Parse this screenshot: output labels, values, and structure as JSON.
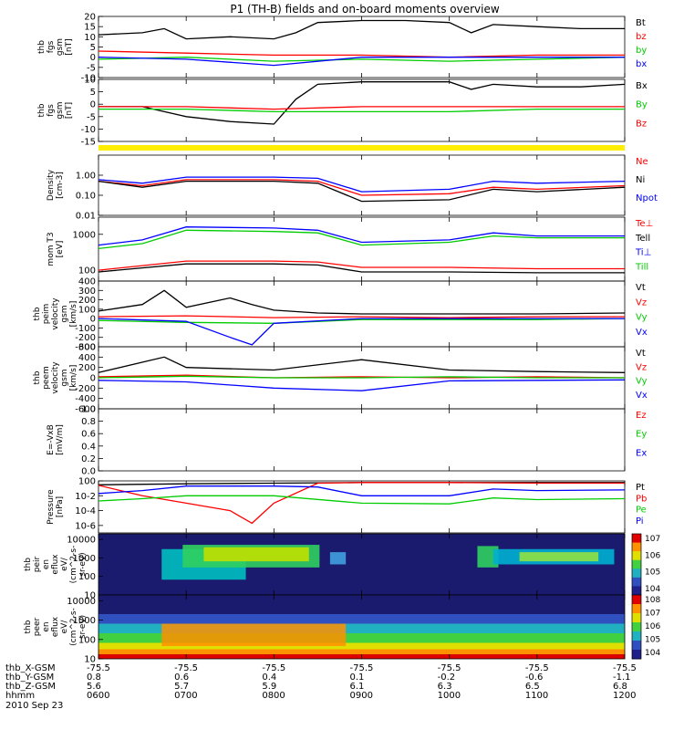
{
  "title": "P1 (TH-B) fields and on-board moments overview",
  "date_label": "2010 Sep 23",
  "time_axis": {
    "row_labels": [
      "thb_X-GSM",
      "thb_Y-GSM",
      "thb_Z-GSM",
      "hhmm"
    ],
    "columns": [
      [
        "-75.5",
        "0.8",
        "5.6",
        "0600"
      ],
      [
        "-75.5",
        "0.6",
        "5.7",
        "0700"
      ],
      [
        "-75.5",
        "0.4",
        "5.9",
        "0800"
      ],
      [
        "-75.5",
        "0.1",
        "6.1",
        "0900"
      ],
      [
        "-75.5",
        "-0.2",
        "6.3",
        "1000"
      ],
      [
        "-75.5",
        "-0.6",
        "6.5",
        "1100"
      ],
      [
        "-75.5",
        "-1.1",
        "6.8",
        "1200"
      ]
    ]
  },
  "colorbar_labels": {
    "ion": [
      "10^7",
      "10^6",
      "10^5",
      "10^4"
    ],
    "electron": [
      "10^8",
      "10^7",
      "10^6",
      "10^5",
      "10^4"
    ]
  },
  "chart_data": [
    {
      "id": "fgs-gsm",
      "type": "line",
      "ylabel": [
        "thb",
        "fgs",
        "gsm",
        "[nT]"
      ],
      "ylim": [
        -10,
        20
      ],
      "yticks": [
        "20",
        "15",
        "10",
        "5",
        "0",
        "-5",
        "-10"
      ],
      "x_range": [
        "0600",
        "1200"
      ],
      "series": [
        {
          "name": "Bt",
          "color": "#000000",
          "x": [
            "0600",
            "0630",
            "0645",
            "0700",
            "0730",
            "0800",
            "0815",
            "0830",
            "0900",
            "0930",
            "1000",
            "1015",
            "1030",
            "1100",
            "1130",
            "1200"
          ],
          "y": [
            11,
            12,
            14,
            9,
            10,
            9,
            12,
            17,
            18,
            18,
            17,
            12,
            16,
            15,
            14,
            14
          ]
        },
        {
          "name": "bz",
          "color": "#ff0000",
          "x": [
            "0600",
            "0700",
            "0800",
            "0900",
            "1000",
            "1100",
            "1200"
          ],
          "y": [
            3,
            2,
            1,
            1,
            0,
            1,
            1
          ]
        },
        {
          "name": "by",
          "color": "#00cc00",
          "x": [
            "0600",
            "0700",
            "0800",
            "0900",
            "1000",
            "1100",
            "1200"
          ],
          "y": [
            -1,
            0,
            -2,
            -1,
            -2,
            -1,
            0
          ]
        },
        {
          "name": "bx",
          "color": "#0000ff",
          "x": [
            "0600",
            "0700",
            "0800",
            "0900",
            "1000",
            "1100",
            "1200"
          ],
          "y": [
            0,
            -1,
            -4,
            0,
            0,
            0,
            0
          ]
        }
      ]
    },
    {
      "id": "fgs-gsm-2",
      "type": "line",
      "ylabel": [
        "thb",
        "fgs",
        "gsm",
        "[nT]"
      ],
      "ylim": [
        -15,
        10
      ],
      "yticks": [
        "10",
        "5",
        "0",
        "-5",
        "-10",
        "-15"
      ],
      "x_range": [
        "0600",
        "1200"
      ],
      "series": [
        {
          "name": "Bx",
          "color": "#000000",
          "x": [
            "0600",
            "0630",
            "0700",
            "0730",
            "0800",
            "0815",
            "0830",
            "0900",
            "1000",
            "1015",
            "1030",
            "1100",
            "1130",
            "1200"
          ],
          "y": [
            -1,
            -1,
            -5,
            -7,
            -8,
            2,
            8,
            9,
            9,
            6,
            8,
            7,
            7,
            8
          ]
        },
        {
          "name": "By",
          "color": "#00cc00",
          "x": [
            "0600",
            "0700",
            "0800",
            "0900",
            "1000",
            "1100",
            "1200"
          ],
          "y": [
            -2,
            -2,
            -3,
            -3,
            -3,
            -2,
            -2
          ]
        },
        {
          "name": "Bz",
          "color": "#ff0000",
          "x": [
            "0600",
            "0700",
            "0800",
            "0900",
            "1000",
            "1100",
            "1200"
          ],
          "y": [
            -1,
            -1,
            -2,
            -1,
            -1,
            -1,
            -1
          ]
        }
      ]
    },
    {
      "id": "density",
      "type": "line",
      "ylabel": [
        "Density",
        "[cm-3]"
      ],
      "yscale": "log",
      "ylim": [
        0.01,
        10
      ],
      "yticks": [
        "1.00",
        "0.10",
        "0.01"
      ],
      "x_range": [
        "0600",
        "1200"
      ],
      "series": [
        {
          "name": "Ne",
          "color": "#ff0000",
          "x": [
            "0600",
            "0630",
            "0700",
            "0800",
            "0830",
            "0900",
            "1000",
            "1030",
            "1100",
            "1200"
          ],
          "y": [
            0.5,
            0.3,
            0.6,
            0.6,
            0.5,
            0.1,
            0.12,
            0.25,
            0.2,
            0.3
          ]
        },
        {
          "name": "Ni",
          "color": "#000000",
          "x": [
            "0600",
            "0630",
            "0700",
            "0800",
            "0830",
            "0900",
            "1000",
            "1030",
            "1100",
            "1200"
          ],
          "y": [
            0.5,
            0.25,
            0.5,
            0.5,
            0.4,
            0.05,
            0.06,
            0.2,
            0.15,
            0.25
          ]
        },
        {
          "name": "Npot",
          "color": "#0000ff",
          "x": [
            "0600",
            "0630",
            "0700",
            "0800",
            "0830",
            "0900",
            "1000",
            "1030",
            "1100",
            "1200"
          ],
          "y": [
            0.6,
            0.4,
            0.8,
            0.8,
            0.7,
            0.15,
            0.2,
            0.5,
            0.4,
            0.5
          ]
        }
      ]
    },
    {
      "id": "temperature",
      "type": "line",
      "ylabel": [
        "mom T3",
        "[eV]"
      ],
      "yscale": "log",
      "ylim": [
        50,
        3000
      ],
      "yticks": [
        "1000",
        "100"
      ],
      "x_range": [
        "0600",
        "1200"
      ],
      "series": [
        {
          "name": "Te⊥",
          "color": "#ff0000",
          "x": [
            "0600",
            "0700",
            "0800",
            "0830",
            "0900",
            "1000",
            "1100",
            "1200"
          ],
          "y": [
            100,
            180,
            180,
            170,
            120,
            120,
            110,
            110
          ]
        },
        {
          "name": "Tell",
          "color": "#000000",
          "x": [
            "0600",
            "0700",
            "0800",
            "0830",
            "0900",
            "1000",
            "1100",
            "1200"
          ],
          "y": [
            90,
            150,
            150,
            140,
            90,
            90,
            85,
            85
          ]
        },
        {
          "name": "Ti⊥",
          "color": "#0000ff",
          "x": [
            "0600",
            "0630",
            "0700",
            "0800",
            "0830",
            "0900",
            "1000",
            "1030",
            "1100",
            "1200"
          ],
          "y": [
            500,
            700,
            1600,
            1500,
            1300,
            600,
            700,
            1100,
            900,
            900
          ]
        },
        {
          "name": "Till",
          "color": "#00cc00",
          "x": [
            "0600",
            "0630",
            "0700",
            "0800",
            "0830",
            "0900",
            "1000",
            "1030",
            "1100",
            "1200"
          ],
          "y": [
            400,
            550,
            1300,
            1200,
            1100,
            500,
            600,
            900,
            800,
            800
          ]
        }
      ]
    },
    {
      "id": "peim-velocity",
      "type": "line",
      "ylabel": [
        "thb",
        "peim",
        "velocity",
        "gsm",
        "[km/s]"
      ],
      "ylim": [
        -300,
        400
      ],
      "yticks": [
        "400",
        "300",
        "200",
        "100",
        "0",
        "-100",
        "-200",
        "-300"
      ],
      "x_range": [
        "0600",
        "1200"
      ],
      "series": [
        {
          "name": "Vt",
          "color": "#000000",
          "x": [
            "0600",
            "0630",
            "0645",
            "0700",
            "0730",
            "0745",
            "0800",
            "0830",
            "0900",
            "1000",
            "1100",
            "1200"
          ],
          "y": [
            80,
            150,
            300,
            120,
            220,
            150,
            90,
            60,
            50,
            50,
            50,
            60
          ]
        },
        {
          "name": "Vz",
          "color": "#ff0000",
          "x": [
            "0600",
            "0700",
            "0800",
            "0900",
            "1000",
            "1100",
            "1200"
          ],
          "y": [
            20,
            30,
            10,
            20,
            10,
            20,
            20
          ]
        },
        {
          "name": "Vy",
          "color": "#00cc00",
          "x": [
            "0600",
            "0700",
            "0800",
            "0900",
            "1000",
            "1100",
            "1200"
          ],
          "y": [
            -20,
            -40,
            -50,
            -10,
            -10,
            -10,
            0
          ]
        },
        {
          "name": "Vx",
          "color": "#0000ff",
          "x": [
            "0600",
            "0700",
            "0730",
            "0745",
            "0800",
            "0900",
            "1000",
            "1100",
            "1200"
          ],
          "y": [
            0,
            -30,
            -200,
            -280,
            -50,
            0,
            0,
            0,
            0
          ]
        }
      ]
    },
    {
      "id": "peem-velocity",
      "type": "line",
      "ylabel": [
        "thb",
        "peem",
        "velocity",
        "gsm",
        "[km/s]"
      ],
      "ylim": [
        -600,
        600
      ],
      "yticks": [
        "600",
        "400",
        "200",
        "0",
        "-200",
        "-400",
        "-600"
      ],
      "x_range": [
        "0600",
        "1200"
      ],
      "series": [
        {
          "name": "Vt",
          "color": "#000000",
          "x": [
            "0600",
            "0645",
            "0700",
            "0800",
            "0900",
            "1000",
            "1100",
            "1200"
          ],
          "y": [
            100,
            400,
            200,
            150,
            350,
            150,
            120,
            100
          ]
        },
        {
          "name": "Vz",
          "color": "#ff0000",
          "x": [
            "0600",
            "0700",
            "0800",
            "0900",
            "1000",
            "1100",
            "1200"
          ],
          "y": [
            20,
            50,
            0,
            20,
            0,
            20,
            0
          ]
        },
        {
          "name": "Vy",
          "color": "#00cc00",
          "x": [
            "0600",
            "0700",
            "0800",
            "0900",
            "1000",
            "1100",
            "1200"
          ],
          "y": [
            0,
            30,
            0,
            0,
            20,
            0,
            0
          ]
        },
        {
          "name": "Vx",
          "color": "#0000ff",
          "x": [
            "0600",
            "0700",
            "0800",
            "0900",
            "1000",
            "1100",
            "1200"
          ],
          "y": [
            -50,
            -80,
            -200,
            -250,
            -60,
            -50,
            -40
          ]
        }
      ]
    },
    {
      "id": "efield",
      "type": "line",
      "ylabel": [
        "E=-VxB",
        "[mV/m]"
      ],
      "ylim": [
        0,
        1
      ],
      "yticks": [
        "1.0",
        "0.8",
        "0.6",
        "0.4",
        "0.2",
        "0.0"
      ],
      "x_range": [
        "0600",
        "1200"
      ],
      "series": [
        {
          "name": "Ez",
          "color": "#ff0000",
          "x": [],
          "y": []
        },
        {
          "name": "Ey",
          "color": "#00cc00",
          "x": [],
          "y": []
        },
        {
          "name": "Ex",
          "color": "#0000ff",
          "x": [],
          "y": []
        }
      ]
    },
    {
      "id": "pressure",
      "type": "line",
      "ylabel": [
        "Pressure",
        "[nPa]"
      ],
      "yscale": "log",
      "ylim": [
        1e-07,
        1
      ],
      "yticks": [
        "10^0",
        "10^-2",
        "10^-4",
        "10^-6"
      ],
      "x_range": [
        "0600",
        "1200"
      ],
      "series": [
        {
          "name": "Pt",
          "color": "#000000",
          "x": [
            "0600",
            "0700",
            "0800",
            "0900",
            "1000",
            "1100",
            "1200"
          ],
          "y": [
            0.3,
            0.4,
            0.5,
            0.6,
            0.6,
            0.6,
            0.6
          ]
        },
        {
          "name": "Pb",
          "color": "#ff0000",
          "x": [
            "0600",
            "0630",
            "0700",
            "0730",
            "0745",
            "0800",
            "0830",
            "0900",
            "1000",
            "1100",
            "1200"
          ],
          "y": [
            0.25,
            0.01,
            0.001,
            0.0001,
            2e-06,
            0.001,
            0.5,
            0.6,
            0.6,
            0.5,
            0.5
          ]
        },
        {
          "name": "Pe",
          "color": "#00cc00",
          "x": [
            "0600",
            "0630",
            "0700",
            "0800",
            "0900",
            "1000",
            "1030",
            "1100",
            "1200"
          ],
          "y": [
            0.002,
            0.004,
            0.01,
            0.01,
            0.001,
            0.0008,
            0.005,
            0.003,
            0.004
          ]
        },
        {
          "name": "Pi",
          "color": "#0000ff",
          "x": [
            "0600",
            "0630",
            "0700",
            "0800",
            "0830",
            "0900",
            "1000",
            "1030",
            "1100",
            "1200"
          ],
          "y": [
            0.02,
            0.05,
            0.2,
            0.2,
            0.15,
            0.01,
            0.01,
            0.08,
            0.05,
            0.06
          ]
        }
      ]
    },
    {
      "id": "peir-spectrogram",
      "type": "heatmap",
      "ylabel": [
        "thb",
        "peir",
        "en",
        "eflux",
        "eV/",
        "(cm^2-s-",
        "sr-eV)"
      ],
      "yscale": "log",
      "ylim": [
        10,
        20000
      ],
      "yticks": [
        "10000",
        "1000",
        "100",
        "10"
      ],
      "x_range": [
        "0600",
        "1200"
      ],
      "colorbar": [
        "10^4",
        "10^5",
        "10^6",
        "10^7"
      ]
    },
    {
      "id": "peer-spectrogram",
      "type": "heatmap",
      "ylabel": [
        "thb",
        "peer",
        "en",
        "eflux",
        "eV/",
        "(cm^2-s-",
        "sr-eV)"
      ],
      "yscale": "log",
      "ylim": [
        10,
        20000
      ],
      "yticks": [
        "10000",
        "1000",
        "100",
        "10"
      ],
      "x_range": [
        "0600",
        "1200"
      ],
      "colorbar": [
        "10^4",
        "10^5",
        "10^6",
        "10^7",
        "10^8"
      ]
    }
  ]
}
